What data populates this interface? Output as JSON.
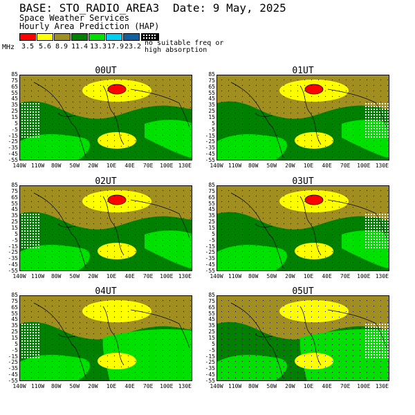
{
  "header": {
    "base": "BASE: STO_RADIO_AREA3",
    "date": "Date:   9 May, 2025",
    "org": "Space Weather Services",
    "product": "Hourly Area Prediction (HAP)"
  },
  "legend": {
    "unit": "MHz",
    "items": [
      {
        "label": "3.5",
        "color": "#ff0000"
      },
      {
        "label": "5.6",
        "color": "#ffff00"
      },
      {
        "label": "8.9",
        "color": "#a08f20"
      },
      {
        "label": "11.4",
        "color": "#008000"
      },
      {
        "label": "13.3",
        "color": "#00e000"
      },
      {
        "label": "17.9",
        "color": "#00d0f0"
      },
      {
        "label": "23.2",
        "color": "#1060a0"
      }
    ],
    "no_freq_label": "no suitable freq or\nhigh absorption"
  },
  "axes": {
    "lat_labels": [
      "85",
      "75",
      "65",
      "55",
      "45",
      "35",
      "25",
      "15",
      "5",
      "-5",
      "-15",
      "-25",
      "-35",
      "-45",
      "-55"
    ],
    "lon_labels": [
      "140W",
      "110W",
      "80W",
      "50W",
      "20W",
      "10E",
      "40E",
      "70E",
      "100E",
      "130E"
    ]
  },
  "panels": [
    {
      "title": "00UT"
    },
    {
      "title": "01UT"
    },
    {
      "title": "02UT"
    },
    {
      "title": "03UT"
    },
    {
      "title": "04UT"
    },
    {
      "title": "05UT"
    }
  ]
}
